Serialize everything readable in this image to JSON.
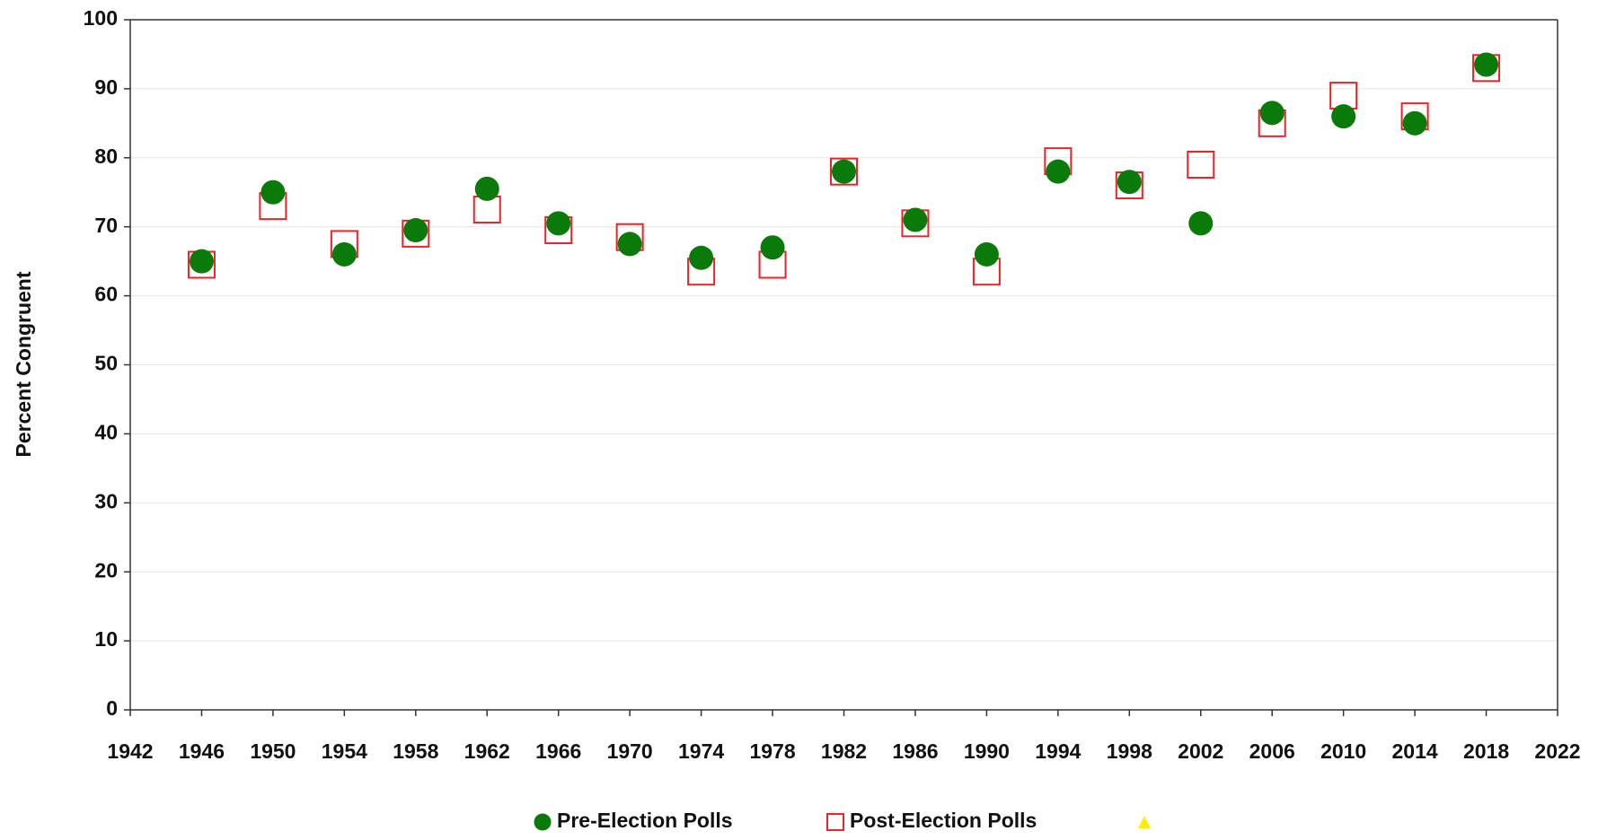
{
  "chart_data": {
    "type": "scatter",
    "y_label": "Percent Congruent",
    "x": [
      1946,
      1950,
      1954,
      1958,
      1962,
      1966,
      1970,
      1974,
      1978,
      1982,
      1986,
      1990,
      1994,
      1998,
      2002,
      2006,
      2010,
      2014,
      2018
    ],
    "series": [
      {
        "name": "Pre-Election Polls",
        "color": "#0a7a0a",
        "marker": "circle",
        "values": [
          65,
          75,
          66,
          69.5,
          75.5,
          70.5,
          67.5,
          65.5,
          67,
          78,
          71,
          66,
          78,
          76.5,
          70.5,
          86.5,
          86,
          85,
          93.5
        ]
      },
      {
        "name": "Post-Election Polls",
        "color": "#e8232a",
        "marker": "square",
        "values": [
          64.5,
          73,
          67.5,
          69,
          72.5,
          69.5,
          68.5,
          63.5,
          64.5,
          78,
          70.5,
          63.5,
          79.5,
          76,
          79,
          85,
          89,
          86,
          93
        ]
      },
      {
        "color": "#ffee00",
        "marker": "triangle",
        "values": []
      }
    ],
    "xlim": [
      1942,
      2022
    ],
    "xticks": [
      1942,
      1946,
      1950,
      1954,
      1958,
      1962,
      1966,
      1970,
      1974,
      1978,
      1982,
      1986,
      1990,
      1994,
      1998,
      2002,
      2006,
      2010,
      2014,
      2018,
      2022
    ],
    "ylim": [
      0,
      100
    ],
    "yticks": [
      0,
      10,
      20,
      30,
      40,
      50,
      60,
      70,
      80,
      90,
      100
    ],
    "grid": true,
    "legend": "bottom"
  }
}
